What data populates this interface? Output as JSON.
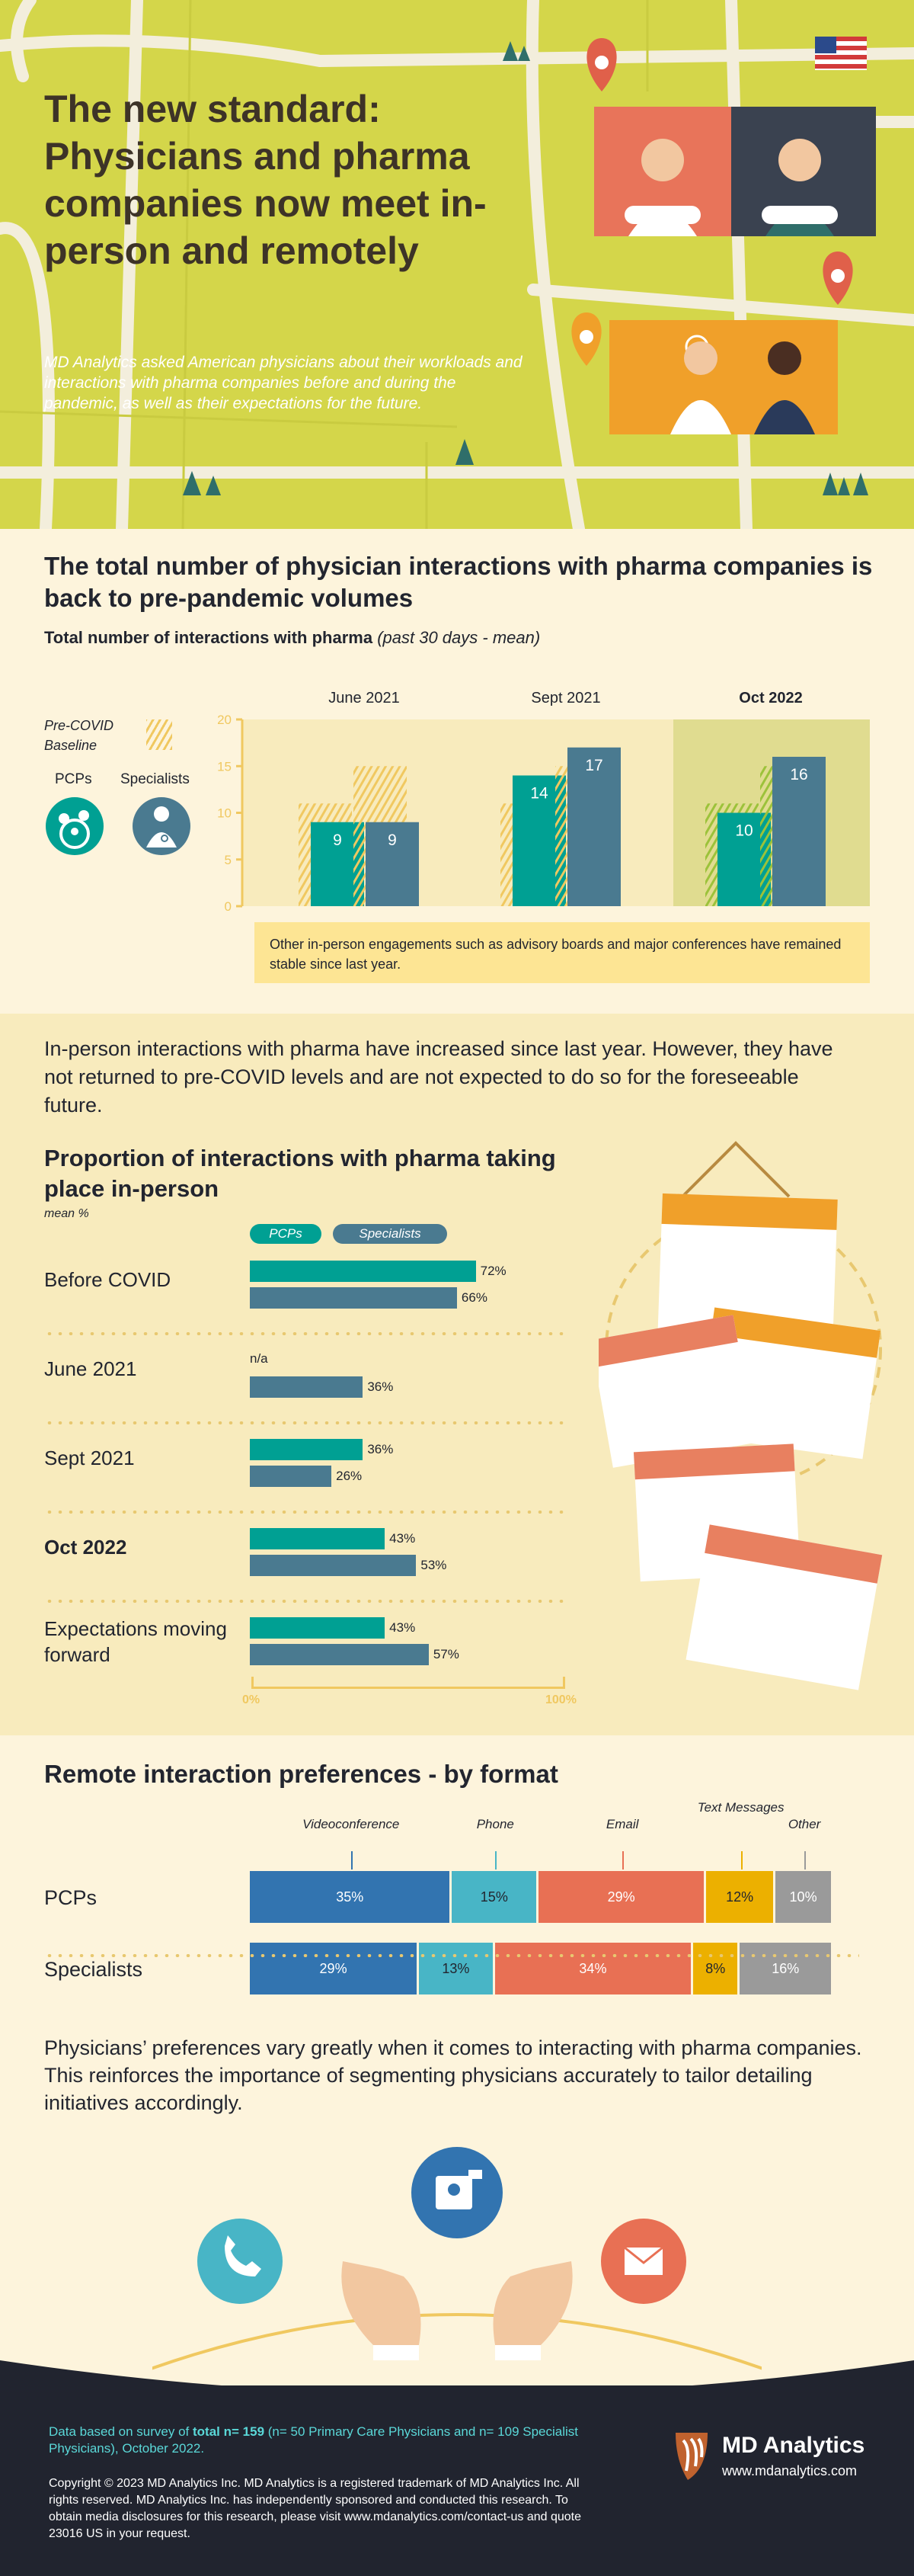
{
  "hero": {
    "title": "The new standard: Physicians and pharma companies now meet in-person and remotely",
    "subtitle": "MD Analytics asked American physicians about their workloads and interactions with pharma companies before and during the pandemic, as well as their expectations for the future.",
    "flag_icon": "us-flag-icon"
  },
  "section1": {
    "title": "The total number of physician interactions with pharma companies is back to pre-pandemic volumes",
    "subtitle_main": "Total number of interactions with pharma",
    "subtitle_note": "(past 30 days - mean)",
    "legend": {
      "baseline": "Pre-COVID Baseline",
      "pcps": "PCPs",
      "specialists": "Specialists"
    },
    "note": "Other in-person engagements such as advisory boards and major conferences have remained stable since last year."
  },
  "section2": {
    "intro": "In-person interactions with pharma have increased since last year. However, they have not returned to pre-COVID levels and are not expected to do so for the foreseeable future.",
    "title": "Proportion of interactions with pharma taking place in-person",
    "subtitle": "mean %",
    "legend": {
      "pcps": "PCPs",
      "specialists": "Specialists"
    },
    "na_label": "n/a",
    "axis": {
      "min": "0%",
      "max": "100%"
    }
  },
  "section3": {
    "title": "Remote interaction preferences - by format",
    "formats": [
      "Videoconference",
      "Phone",
      "Email",
      "Text Messages",
      "Other"
    ],
    "rows": [
      "PCPs",
      "Specialists"
    ],
    "paragraph": "Physicians’ preferences vary greatly when it comes to interacting with pharma companies. This reinforces the importance of segmenting physicians accurately to tailor detailing initiatives accordingly."
  },
  "footer": {
    "survey_pre": "Data based on survey of ",
    "survey_bold": "total n= 159",
    "survey_post": " (n= 50 Primary Care Physicians and n= 109 Specialist Physicians), October 2022.",
    "copyright": "Copyright © 2023 MD Analytics Inc. MD Analytics is a registered trademark of MD Analytics Inc. All rights reserved. MD Analytics Inc. has independently sponsored and conducted this research. To obtain media disclosures for this research, please visit www.mdanalytics.com/contact-us and quote 23016 US in your request.",
    "brand": "MD Analytics",
    "url": "www.mdanalytics.com"
  },
  "colors": {
    "pcp": "#00a093",
    "spec": "#4a7a90",
    "video": "#3274b0",
    "phone": "#48b5c6",
    "email": "#e87054",
    "text": "#ecb000",
    "other": "#9a9a9a"
  },
  "chart_data": [
    {
      "type": "bar",
      "title": "Total number of interactions with pharma (past 30 days - mean)",
      "categories": [
        "June 2021",
        "Sept 2021",
        "Oct 2022"
      ],
      "ylim": [
        0,
        20
      ],
      "yticks": [
        "0",
        "5",
        "10",
        "15",
        "20"
      ],
      "series": [
        {
          "name": "PCPs",
          "values": [
            9,
            14,
            10
          ]
        },
        {
          "name": "Specialists",
          "values": [
            9,
            17,
            16
          ]
        }
      ],
      "baseline": {
        "name": "Pre-COVID Baseline",
        "values": [
          11,
          15
        ]
      }
    },
    {
      "type": "bar",
      "title": "Proportion of interactions with pharma taking place in-person",
      "categories": [
        "Before COVID",
        "June 2021",
        "Sept 2021",
        "Oct 2022",
        "Expectations moving forward"
      ],
      "xlim": [
        0,
        100
      ],
      "series": [
        {
          "name": "PCPs",
          "values": [
            72,
            null,
            36,
            43,
            43
          ],
          "labels": [
            "72%",
            "",
            "36%",
            "43%",
            "43%"
          ]
        },
        {
          "name": "Specialists",
          "values": [
            66,
            36,
            26,
            53,
            57
          ],
          "labels": [
            "66%",
            "36%",
            "26%",
            "53%",
            "57%"
          ]
        }
      ]
    },
    {
      "type": "bar",
      "title": "Remote interaction preferences - by format",
      "categories": [
        "PCPs",
        "Specialists"
      ],
      "series": [
        {
          "name": "Videoconference",
          "values": [
            35,
            29
          ],
          "labels": [
            "35%",
            "29%"
          ]
        },
        {
          "name": "Phone",
          "values": [
            15,
            13
          ],
          "labels": [
            "15%",
            "13%"
          ]
        },
        {
          "name": "Email",
          "values": [
            29,
            34
          ],
          "labels": [
            "29%",
            "34%"
          ]
        },
        {
          "name": "Text Messages",
          "values": [
            12,
            8
          ],
          "labels": [
            "12%",
            "8%"
          ]
        },
        {
          "name": "Other",
          "values": [
            10,
            16
          ],
          "labels": [
            "10%",
            "16%"
          ]
        }
      ]
    }
  ]
}
